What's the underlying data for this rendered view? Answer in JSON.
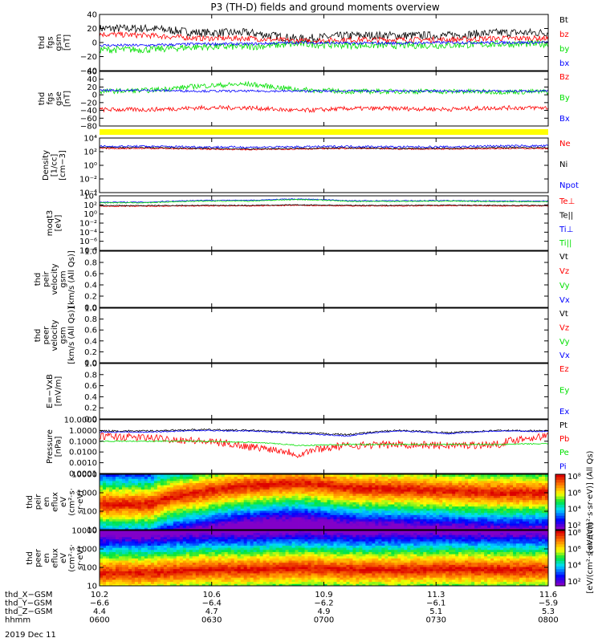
{
  "title": "P3 (TH-D) fields and ground moments overview",
  "date_label": "2019 Dec 11",
  "colors": {
    "black": "#000000",
    "red": "#ff0000",
    "green": "#00e000",
    "blue": "#0000ff",
    "yellow": "#ffff00"
  },
  "chart_data": [
    {
      "type": "line",
      "panel": "fgs_gsm",
      "ylabel": [
        "thd",
        "fgs",
        "gsm",
        "[nT]"
      ],
      "ylim": [
        -40,
        40
      ],
      "ticks": [
        "40",
        "20",
        "0",
        "−20",
        "−40"
      ],
      "legend": [
        {
          "name": "Bt",
          "color": "black"
        },
        {
          "name": "bz",
          "color": "red"
        },
        {
          "name": "by",
          "color": "green"
        },
        {
          "name": "bx",
          "color": "blue"
        }
      ],
      "series": [
        {
          "name": "Bt",
          "mean": [
            20,
            20,
            14,
            14,
            5,
            10,
            10,
            10,
            14,
            14
          ],
          "noise": 6
        },
        {
          "name": "bz",
          "mean": [
            12,
            10,
            6,
            6,
            2,
            4,
            4,
            4,
            6,
            6
          ],
          "noise": 4
        },
        {
          "name": "by",
          "mean": [
            -10,
            -10,
            -6,
            -6,
            -2,
            -4,
            -4,
            -4,
            -2,
            -2
          ],
          "noise": 5
        },
        {
          "name": "bx",
          "mean": [
            -4,
            -4,
            -2,
            -2,
            0,
            -1,
            -1,
            0,
            0,
            0
          ],
          "noise": 2
        }
      ]
    },
    {
      "type": "line",
      "panel": "fgs_gse",
      "ylabel": [
        "thd",
        "fgs",
        "gse",
        "[nT]"
      ],
      "ylim": [
        -90,
        60
      ],
      "ticks": [
        "60",
        "40",
        "20",
        "0",
        "−20",
        "−40",
        "−60",
        "−80"
      ],
      "legend": [
        {
          "name": "Bz",
          "color": "red"
        },
        {
          "name": "By",
          "color": "green"
        },
        {
          "name": "Bx",
          "color": "blue"
        }
      ],
      "series": [
        {
          "name": "Bz",
          "mean": [
            -45,
            -45,
            -40,
            -40,
            -48,
            -42,
            -42,
            -44,
            -40,
            -40
          ],
          "noise": 6
        },
        {
          "name": "By",
          "mean": [
            5,
            8,
            20,
            25,
            10,
            5,
            5,
            5,
            4,
            4
          ],
          "noise": 7
        },
        {
          "name": "Bx",
          "mean": [
            8,
            8,
            6,
            6,
            6,
            6,
            6,
            6,
            6,
            6
          ],
          "noise": 3
        }
      ]
    },
    {
      "type": "line",
      "panel": "density",
      "ylabel": [
        "Density",
        "[1/cc]",
        "[cm−3]"
      ],
      "yscale": "log",
      "ylim": [
        0.0001,
        10000.0
      ],
      "ticks": [
        "10⁴",
        "10²",
        "10⁰",
        "10⁻²",
        "10⁻⁴"
      ],
      "legend": [
        {
          "name": "Ne",
          "color": "red"
        },
        {
          "name": "Ni",
          "color": "black"
        },
        {
          "name": "Npot",
          "color": "blue"
        }
      ],
      "series": [
        {
          "name": "Ne",
          "mean": [
            300,
            300,
            250,
            200,
            250,
            300,
            250,
            250,
            300,
            300
          ],
          "noise": 0.1
        },
        {
          "name": "Ni",
          "mean": [
            400,
            400,
            300,
            250,
            300,
            350,
            300,
            300,
            400,
            400
          ],
          "noise": 0.1
        },
        {
          "name": "Npot",
          "mean": [
            600,
            600,
            500,
            450,
            500,
            600,
            500,
            500,
            700,
            700
          ],
          "noise": 0.15
        }
      ]
    },
    {
      "type": "line",
      "panel": "temperature",
      "ylabel": [
        "moqt3",
        "[eV]"
      ],
      "yscale": "log",
      "ylim": [
        1e-08,
        10000.0
      ],
      "ticks": [
        "10⁴",
        "10²",
        "10⁰",
        "10⁻²",
        "10⁻⁴",
        "10⁻⁶",
        "10⁻⁸"
      ],
      "legend": [
        {
          "name": "Te⊥",
          "color": "red"
        },
        {
          "name": "Te||",
          "color": "black"
        },
        {
          "name": "Ti⊥",
          "color": "blue"
        },
        {
          "name": "Ti||",
          "color": "green"
        }
      ],
      "series": [
        {
          "name": "Te⊥",
          "mean": [
            50,
            50,
            60,
            60,
            80,
            60,
            60,
            70,
            60,
            60
          ],
          "noise": 0.1
        },
        {
          "name": "Te||",
          "mean": [
            70,
            70,
            80,
            80,
            100,
            80,
            80,
            90,
            80,
            80
          ],
          "noise": 0.1
        },
        {
          "name": "Ti⊥",
          "mean": [
            400,
            400,
            1000,
            1000,
            2000,
            800,
            800,
            900,
            700,
            700
          ],
          "noise": 0.1
        },
        {
          "name": "Ti||",
          "mean": [
            300,
            300,
            700,
            700,
            1500,
            600,
            600,
            700,
            500,
            500
          ],
          "noise": 0.1
        }
      ]
    },
    {
      "type": "line",
      "panel": "peir_velocity",
      "ylabel": [
        "thd",
        "peir",
        "velocity",
        "gsm",
        "[km/s (All Qs)]"
      ],
      "ylim": [
        0,
        1
      ],
      "ticks": [
        "1.0",
        "0.8",
        "0.6",
        "0.4",
        "0.2",
        "0.0"
      ],
      "legend": [
        {
          "name": "Vt",
          "color": "black"
        },
        {
          "name": "Vz",
          "color": "red"
        },
        {
          "name": "Vy",
          "color": "green"
        },
        {
          "name": "Vx",
          "color": "blue"
        }
      ],
      "series": []
    },
    {
      "type": "line",
      "panel": "peer_velocity",
      "ylabel": [
        "thd",
        "peer",
        "velocity",
        "gsm",
        "[km/s (All Qs)]"
      ],
      "ylim": [
        0,
        1
      ],
      "ticks": [
        "1.0",
        "0.8",
        "0.6",
        "0.4",
        "0.2",
        "0.0"
      ],
      "legend": [
        {
          "name": "Vt",
          "color": "black"
        },
        {
          "name": "Vz",
          "color": "red"
        },
        {
          "name": "Vy",
          "color": "green"
        },
        {
          "name": "Vx",
          "color": "blue"
        }
      ],
      "series": []
    },
    {
      "type": "line",
      "panel": "efield",
      "ylabel": [
        "E=−VxB",
        "[mV/m]"
      ],
      "ylim": [
        0,
        1
      ],
      "ticks": [
        "1.0",
        "0.8",
        "0.6",
        "0.4",
        "0.2",
        "0.0"
      ],
      "legend": [
        {
          "name": "Ez",
          "color": "red"
        },
        {
          "name": "Ey",
          "color": "green"
        },
        {
          "name": "Ex",
          "color": "blue"
        }
      ],
      "series": []
    },
    {
      "type": "line",
      "panel": "pressure",
      "ylabel": [
        "Pressure",
        "[nPa]"
      ],
      "yscale": "log",
      "ylim": [
        0.0001,
        10
      ],
      "ticks": [
        "10.0000",
        "1.0000",
        "0.1000",
        "0.0100",
        "0.0010",
        "0.0001"
      ],
      "legend": [
        {
          "name": "Pt",
          "color": "black"
        },
        {
          "name": "Pb",
          "color": "red"
        },
        {
          "name": "Pe",
          "color": "green"
        },
        {
          "name": "Pi",
          "color": "blue"
        }
      ],
      "series": [
        {
          "name": "Pt",
          "mean": [
            0.9,
            0.9,
            1.2,
            1.0,
            0.6,
            0.4,
            1.0,
            0.6,
            1.0,
            0.9
          ],
          "noise": 0.08
        },
        {
          "name": "Pb",
          "mean": [
            0.3,
            0.2,
            0.1,
            0.03,
            0.005,
            0.04,
            0.05,
            0.04,
            0.05,
            0.3
          ],
          "noise": 0.35
        },
        {
          "name": "Pe",
          "mean": [
            0.1,
            0.1,
            0.1,
            0.08,
            0.04,
            0.05,
            0.05,
            0.05,
            0.05,
            0.06
          ],
          "noise": 0.05
        },
        {
          "name": "Pi",
          "mean": [
            0.7,
            0.7,
            1.0,
            0.9,
            0.5,
            0.3,
            0.9,
            0.5,
            0.9,
            0.8
          ],
          "noise": 0.05
        }
      ]
    },
    {
      "type": "heatmap",
      "panel": "peir_eflux",
      "ylabel": [
        "thd",
        "peir",
        "en",
        "eflux",
        "eV",
        "(cm²·s·",
        "sr·eV)"
      ],
      "yscale": "log",
      "ylim": [
        8,
        20000
      ],
      "ticks": [
        "10000",
        "1000",
        "100",
        "10"
      ],
      "colorbar": {
        "label": "[eV/(cm²·s·sr·eV)] (All Qs)",
        "ticks": [
          "10⁸",
          "10⁶",
          "10⁴",
          "10²"
        ]
      },
      "peak_energy": [
        300,
        300,
        1500,
        4000,
        6000,
        3000,
        2500,
        2000,
        1500,
        1500
      ]
    },
    {
      "type": "heatmap",
      "panel": "peer_eflux",
      "ylabel": [
        "thd",
        "peer",
        "en",
        "eflux",
        "eV",
        "(cm²·s·",
        "sr·eV)"
      ],
      "yscale": "log",
      "ylim": [
        8,
        20000
      ],
      "ticks": [
        "10000",
        "1000",
        "100",
        "10"
      ],
      "colorbar": {
        "label": "[eV/(cm²·s·sr·eV)]",
        "ticks": [
          "10⁸",
          "10⁶",
          "10⁴",
          "10²"
        ]
      },
      "peak_energy": [
        50,
        50,
        80,
        80,
        100,
        80,
        80,
        90,
        80,
        80
      ]
    }
  ],
  "x_axis": {
    "rows": [
      {
        "label": "thd_X−GSM",
        "values": [
          "10.2",
          "10.6",
          "10.9",
          "11.3",
          "11.6"
        ]
      },
      {
        "label": "thd_Y−GSM",
        "values": [
          "−6.6",
          "−6.4",
          "−6.2",
          "−6.1",
          "−5.9"
        ]
      },
      {
        "label": "thd_Z−GSM",
        "values": [
          "4.4",
          "4.7",
          "4.9",
          "5.1",
          "5.3"
        ]
      },
      {
        "label": "hhmm",
        "values": [
          "0600",
          "0630",
          "0700",
          "0730",
          "0800"
        ]
      }
    ]
  }
}
